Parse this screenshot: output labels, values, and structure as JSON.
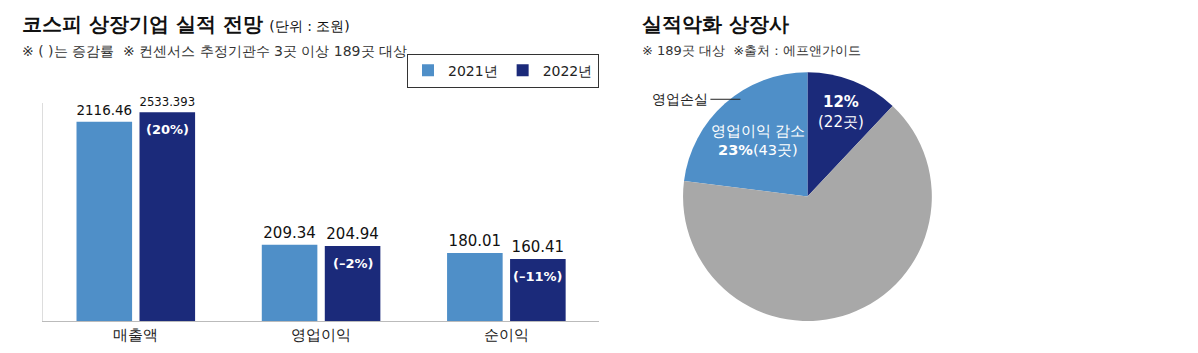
{
  "chart_data": [
    {
      "type": "bar",
      "title": "코스피 상장기업 실적 전망",
      "subtitle": "(단위 : 조원)",
      "note": "※ ( )는 증감률  ※ 컨센서스 추정기관수 3곳 이상 189곳 대상",
      "categories": [
        "매출액",
        "영업이익",
        "순이익"
      ],
      "series": [
        {
          "name": "2021년",
          "color": "#4f8fc8",
          "values": [
            2116.46,
            209.34,
            180.01
          ]
        },
        {
          "name": "2022년",
          "color": "#1b2a7a",
          "values": [
            2533.393,
            204.94,
            160.41
          ],
          "changes": [
            20,
            -2,
            -11
          ],
          "change_labels": [
            "(20%)",
            "(–2%)",
            "(–11%)"
          ]
        }
      ],
      "log": "y",
      "ylim": [
        50,
        3000
      ],
      "tick_labels": "x",
      "grid": false,
      "data_labels": true,
      "legend": "top right"
    },
    {
      "type": "pie",
      "title": "실적악화 상장사",
      "note": "※ 189곳 대상  ※출처 : 에프앤가이드",
      "categories": [
        "영업손실",
        "영업이익 감소",
        null
      ],
      "values": [
        12,
        23,
        65
      ],
      "value_labels": [
        "12%",
        "23%",
        null
      ],
      "counts": [
        22,
        43,
        null
      ],
      "count_labels": [
        "(22곳)",
        "(43곳)",
        null
      ],
      "colors": [
        "#1b2a7a",
        "#4f8fc8",
        "#a8a8a8"
      ]
    }
  ]
}
